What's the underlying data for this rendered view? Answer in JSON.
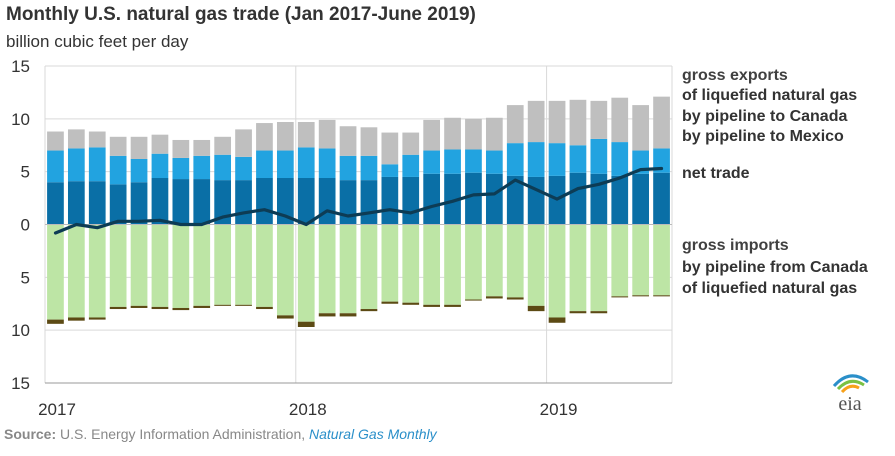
{
  "title": "Monthly U.S. natural gas trade (Jan 2017-June 2019)",
  "subtitle": "billion cubic feet per day",
  "colors": {
    "exports_lng": "#bfbfbf",
    "exports_canada": "#22a3e0",
    "exports_mexico": "#0a6fa6",
    "net_trade": "#0d3c55",
    "imports_canada": "#bde5a5",
    "imports_lng": "#5c4a14",
    "grid": "#d9d9d9"
  },
  "legend": {
    "gross_exports": "gross exports",
    "exports_lng": "of liquefied natural gas",
    "exports_canada": "by pipeline to Canada",
    "exports_mexico": "by pipeline to Mexico",
    "net_trade": "net trade",
    "gross_imports": "gross imports",
    "imports_canada": "by pipeline from Canada",
    "imports_lng": "of liquefied natural gas"
  },
  "source": {
    "label": "Source:",
    "text": "U.S. Energy Information Administration,",
    "publication": "Natural Gas Monthly"
  },
  "logo_text": "eia",
  "chart_data": {
    "type": "bar",
    "stacked": true,
    "x_ticks": [
      "2017",
      "2018",
      "2019"
    ],
    "y_ticks": [
      "15",
      "10",
      "5",
      "0",
      "5",
      "10",
      "15"
    ],
    "ylim": [
      -15,
      15
    ],
    "grid": true,
    "legend_position": "right",
    "months": [
      "2017-01",
      "2017-02",
      "2017-03",
      "2017-04",
      "2017-05",
      "2017-06",
      "2017-07",
      "2017-08",
      "2017-09",
      "2017-10",
      "2017-11",
      "2017-12",
      "2018-01",
      "2018-02",
      "2018-03",
      "2018-04",
      "2018-05",
      "2018-06",
      "2018-07",
      "2018-08",
      "2018-09",
      "2018-10",
      "2018-11",
      "2018-12",
      "2019-01",
      "2019-02",
      "2019-03",
      "2019-04",
      "2019-05",
      "2019-06"
    ],
    "series": [
      {
        "name": "by pipeline to Mexico",
        "key": "exports_mexico",
        "values": [
          4.0,
          4.1,
          4.1,
          3.8,
          4.0,
          4.4,
          4.3,
          4.3,
          4.2,
          4.2,
          4.4,
          4.4,
          4.4,
          4.4,
          4.2,
          4.2,
          4.5,
          4.5,
          4.8,
          4.8,
          4.9,
          4.8,
          4.6,
          4.5,
          4.6,
          4.9,
          4.8,
          4.6,
          4.8,
          4.9
        ]
      },
      {
        "name": "by pipeline to Canada",
        "key": "exports_canada",
        "values": [
          3.0,
          3.1,
          3.2,
          2.7,
          2.2,
          2.3,
          2.0,
          2.2,
          2.4,
          2.2,
          2.6,
          2.6,
          2.9,
          2.8,
          2.3,
          2.3,
          1.2,
          2.1,
          2.2,
          2.3,
          2.2,
          2.2,
          3.1,
          3.3,
          3.1,
          2.6,
          3.3,
          3.2,
          2.2,
          2.3
        ]
      },
      {
        "name": "of liquefied natural gas",
        "key": "exports_lng",
        "values": [
          1.8,
          1.8,
          1.5,
          1.8,
          2.1,
          1.8,
          1.7,
          1.5,
          1.7,
          2.6,
          2.6,
          2.7,
          2.4,
          2.7,
          2.8,
          2.7,
          3.0,
          2.1,
          2.9,
          3.0,
          2.9,
          3.1,
          3.6,
          3.9,
          4.0,
          4.3,
          3.6,
          4.2,
          4.3,
          4.9
        ]
      },
      {
        "name": "by pipeline from Canada",
        "key": "imports_canada",
        "values": [
          -9.0,
          -8.8,
          -8.8,
          -7.8,
          -7.7,
          -7.8,
          -7.9,
          -7.7,
          -7.6,
          -7.6,
          -7.8,
          -8.6,
          -9.2,
          -8.4,
          -8.4,
          -8.0,
          -7.3,
          -7.4,
          -7.6,
          -7.6,
          -7.1,
          -6.8,
          -6.9,
          -7.7,
          -8.8,
          -8.2,
          -8.2,
          -6.8,
          -6.7,
          -6.7
        ]
      },
      {
        "name": "of liquefied natural gas",
        "key": "imports_lng",
        "values": [
          -0.4,
          -0.3,
          -0.2,
          -0.2,
          -0.2,
          -0.2,
          -0.2,
          -0.2,
          -0.1,
          -0.1,
          -0.2,
          -0.3,
          -0.5,
          -0.3,
          -0.3,
          -0.2,
          -0.2,
          -0.2,
          -0.2,
          -0.2,
          -0.1,
          -0.2,
          -0.2,
          -0.5,
          -0.5,
          -0.2,
          -0.2,
          -0.1,
          -0.1,
          -0.1
        ]
      }
    ],
    "net_trade": {
      "name": "net trade",
      "values": [
        -0.8,
        0.0,
        -0.3,
        0.3,
        0.3,
        0.4,
        0.0,
        0.0,
        0.7,
        1.1,
        1.4,
        0.8,
        0.0,
        1.3,
        0.8,
        1.1,
        1.4,
        1.1,
        1.7,
        2.2,
        2.8,
        2.9,
        4.2,
        3.3,
        2.4,
        3.4,
        3.8,
        4.4,
        5.2,
        5.3
      ]
    }
  }
}
